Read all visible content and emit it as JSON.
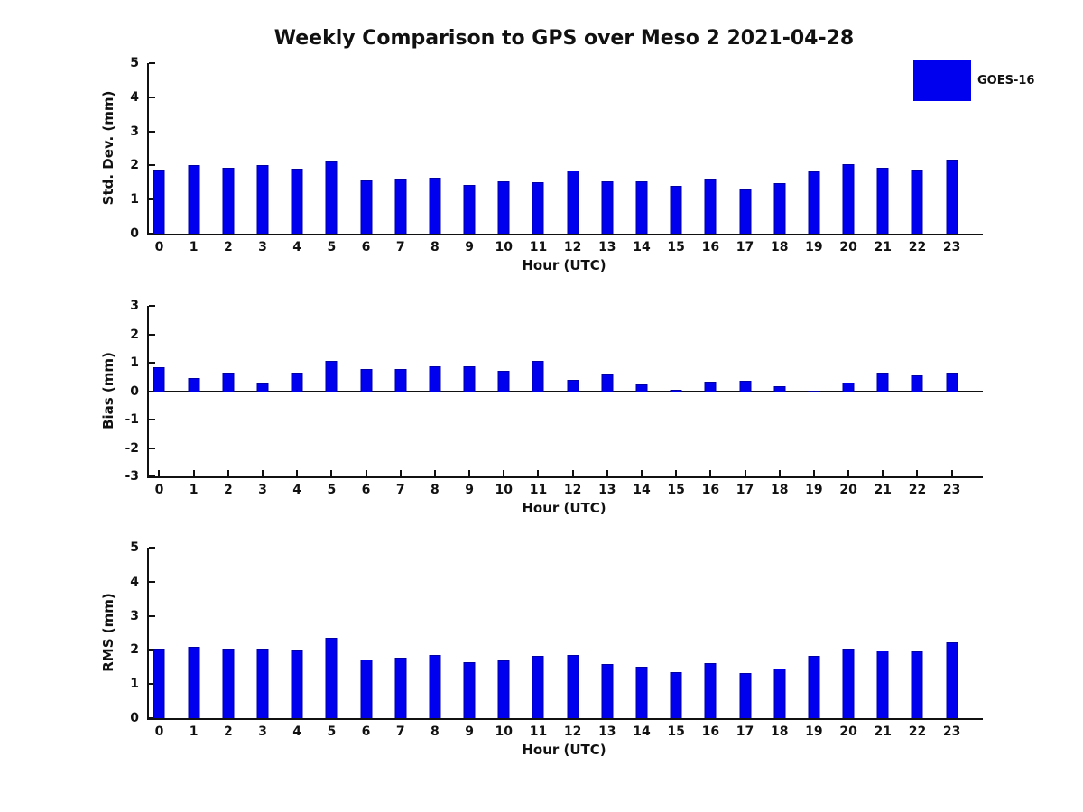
{
  "figure": {
    "title": "Weekly Comparison to GPS over Meso 2 2021-04-28",
    "legend": {
      "label": "GOES-16",
      "swatch_color": "#0000ee"
    },
    "background_color": "#ffffff",
    "text_color": "#111111"
  },
  "chart_data": [
    {
      "type": "bar",
      "title": "",
      "series_name": "GOES-16",
      "bar_color": "#0000ee",
      "xlabel": "Hour (UTC)",
      "ylabel": "Std. Dev. (mm)",
      "ylim": [
        0,
        5
      ],
      "yticks": [
        0,
        1,
        2,
        3,
        4,
        5
      ],
      "grid": false,
      "categories": [
        0,
        1,
        2,
        3,
        4,
        5,
        6,
        7,
        8,
        9,
        10,
        11,
        12,
        13,
        14,
        15,
        16,
        17,
        18,
        19,
        20,
        21,
        22,
        23
      ],
      "values": [
        1.88,
        2.02,
        1.93,
        2.01,
        1.9,
        2.12,
        1.55,
        1.61,
        1.63,
        1.42,
        1.53,
        1.5,
        1.84,
        1.53,
        1.53,
        1.4,
        1.62,
        1.29,
        1.47,
        1.83,
        2.05,
        1.93,
        1.87,
        2.16
      ]
    },
    {
      "type": "bar",
      "title": "",
      "series_name": "GOES-16",
      "bar_color": "#0000ee",
      "xlabel": "Hour (UTC)",
      "ylabel": "Bias (mm)",
      "ylim": [
        -3,
        3
      ],
      "yticks": [
        -3,
        -2,
        -1,
        0,
        1,
        2,
        3
      ],
      "grid": false,
      "categories": [
        0,
        1,
        2,
        3,
        4,
        5,
        6,
        7,
        8,
        9,
        10,
        11,
        12,
        13,
        14,
        15,
        16,
        17,
        18,
        19,
        20,
        21,
        22,
        23
      ],
      "values": [
        0.85,
        0.45,
        0.64,
        0.27,
        0.66,
        1.07,
        0.77,
        0.77,
        0.86,
        0.86,
        0.71,
        1.07,
        0.4,
        0.6,
        0.24,
        0.05,
        0.33,
        0.36,
        0.17,
        0.02,
        0.3,
        0.64,
        0.57,
        0.64
      ]
    },
    {
      "type": "bar",
      "title": "",
      "series_name": "GOES-16",
      "bar_color": "#0000ee",
      "xlabel": "Hour (UTC)",
      "ylabel": "RMS (mm)",
      "ylim": [
        0,
        5
      ],
      "yticks": [
        0,
        1,
        2,
        3,
        4,
        5
      ],
      "grid": false,
      "categories": [
        0,
        1,
        2,
        3,
        4,
        5,
        6,
        7,
        8,
        9,
        10,
        11,
        12,
        13,
        14,
        15,
        16,
        17,
        18,
        19,
        20,
        21,
        22,
        23
      ],
      "values": [
        2.05,
        2.08,
        2.03,
        2.05,
        2.0,
        2.36,
        1.71,
        1.77,
        1.84,
        1.63,
        1.69,
        1.82,
        1.86,
        1.59,
        1.52,
        1.36,
        1.61,
        1.31,
        1.46,
        1.83,
        2.05,
        1.99,
        1.95,
        2.23
      ]
    }
  ]
}
